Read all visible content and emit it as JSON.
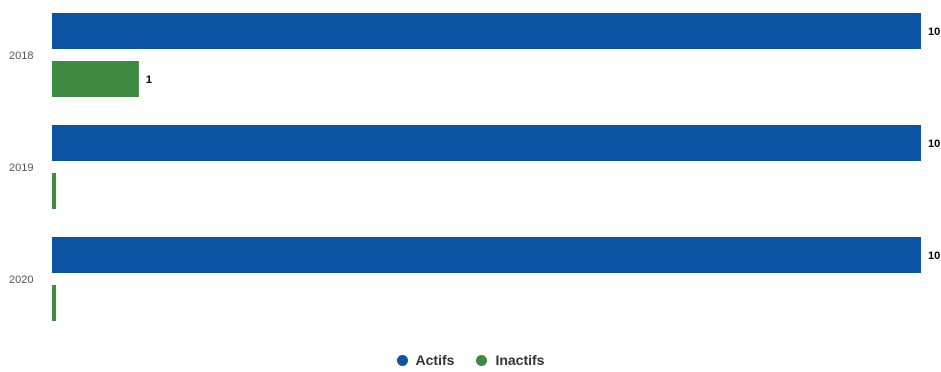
{
  "chart_data": {
    "type": "bar",
    "orientation": "horizontal",
    "categories": [
      "2018",
      "2019",
      "2020"
    ],
    "series": [
      {
        "name": "Actifs",
        "values": [
          10,
          10,
          10
        ],
        "color": "#0b54a2"
      },
      {
        "name": "Inactifs",
        "values": [
          1,
          0,
          0
        ],
        "color": "#3e8a43"
      }
    ],
    "data_labels": [
      [
        "10",
        "10",
        "10"
      ],
      [
        "1",
        "",
        ""
      ]
    ],
    "xlim": [
      0,
      10
    ],
    "grid": false,
    "legend_position": "bottom"
  }
}
